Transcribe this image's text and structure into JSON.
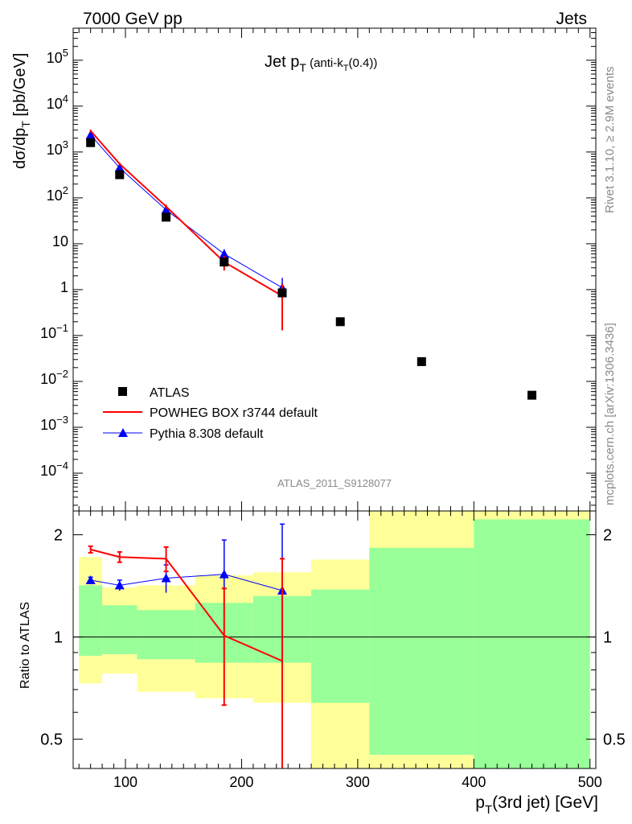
{
  "header": {
    "left": "7000 GeV pp",
    "right": "Jets",
    "side_top": "Rivet 3.1.10, ≥ 2.9M events",
    "side_bottom": "mcplots.cern.ch [arXiv:1306.3436]",
    "analysis_id": "ATLAS_2011_S9128077"
  },
  "chart_data": [
    {
      "type": "scatter",
      "title": "Jet p_T (anti-k_T(0.4))",
      "ylabel": "dσ/dp_T [pb/GeV]",
      "xlabel": "p_T(3rd jet) [GeV]",
      "yscale": "log",
      "ylim": [
        1.5e-05,
        500000
      ],
      "xlim": [
        55,
        505
      ],
      "x_ticks": [
        "100",
        "200",
        "300",
        "400",
        "500"
      ],
      "y_ticks": [
        "10^-4",
        "10^-3",
        "10^-2",
        "10^-1",
        "1",
        "10",
        "10^2",
        "10^3",
        "10^4",
        "10^5"
      ],
      "legend_position": "bottom-left",
      "series": [
        {
          "name": "ATLAS",
          "marker": "square",
          "color": "#000000",
          "x": [
            70,
            95,
            135,
            185,
            235,
            285,
            355,
            450
          ],
          "y": [
            1600,
            320,
            38,
            4.0,
            0.85,
            0.2,
            0.027,
            0.005
          ]
        },
        {
          "name": "POWHEG BOX r3744 default",
          "marker": "line",
          "color": "#ff0000",
          "x": [
            70,
            95,
            135,
            185,
            235
          ],
          "y": [
            2900,
            550,
            65,
            4.0,
            0.73
          ],
          "err": [
            180,
            30,
            6,
            1.4,
            0.6
          ]
        },
        {
          "name": "Pythia 8.308 default",
          "marker": "triangle",
          "color": "#0000ff",
          "x": [
            70,
            95,
            135,
            185,
            235
          ],
          "y": [
            2350,
            450,
            55,
            6.0,
            1.1
          ],
          "err": [
            120,
            20,
            6,
            1.6,
            0.7
          ]
        }
      ]
    },
    {
      "type": "line",
      "ylabel": "Ratio to ATLAS",
      "xlabel": "p_T(3rd jet) [GeV]",
      "yscale": "log",
      "ylim": [
        0.41,
        2.35
      ],
      "xlim": [
        55,
        505
      ],
      "y_ticks": [
        "0.5",
        "1",
        "2"
      ],
      "reference_line": 1,
      "uncertainty_bins": [
        {
          "lo": 60,
          "hi": 80,
          "stat_lo": 0.88,
          "stat_hi": 1.42,
          "tot_lo": 0.73,
          "tot_hi": 1.72
        },
        {
          "lo": 80,
          "hi": 110,
          "stat_lo": 0.89,
          "stat_hi": 1.24,
          "tot_lo": 0.78,
          "tot_hi": 1.4
        },
        {
          "lo": 110,
          "hi": 160,
          "stat_lo": 0.86,
          "stat_hi": 1.2,
          "tot_lo": 0.69,
          "tot_hi": 1.42
        },
        {
          "lo": 160,
          "hi": 210,
          "stat_lo": 0.84,
          "stat_hi": 1.26,
          "tot_lo": 0.66,
          "tot_hi": 1.52
        },
        {
          "lo": 210,
          "hi": 260,
          "stat_lo": 0.84,
          "stat_hi": 1.32,
          "tot_lo": 0.64,
          "tot_hi": 1.55
        },
        {
          "lo": 260,
          "hi": 310,
          "stat_lo": 0.64,
          "stat_hi": 1.38,
          "tot_lo": 0.4,
          "tot_hi": 1.69
        },
        {
          "lo": 310,
          "hi": 400,
          "stat_lo": 0.45,
          "stat_hi": 1.83,
          "tot_lo": 0.4,
          "tot_hi": 2.4
        },
        {
          "lo": 400,
          "hi": 500,
          "stat_lo": 0.4,
          "stat_hi": 2.22,
          "tot_lo": 0.4,
          "tot_hi": 2.4
        }
      ],
      "series": [
        {
          "name": "POWHEG BOX r3744 default",
          "color": "#ff0000",
          "x": [
            70,
            95,
            135,
            185,
            235
          ],
          "y": [
            1.81,
            1.72,
            1.7,
            1.01,
            0.85
          ],
          "err": [
            0.04,
            0.06,
            0.14,
            0.38,
            0.85
          ]
        },
        {
          "name": "Pythia 8.308 default",
          "color": "#0000ff",
          "x": [
            70,
            95,
            135,
            185,
            235
          ],
          "y": [
            1.47,
            1.42,
            1.49,
            1.53,
            1.37
          ],
          "err": [
            0.03,
            0.05,
            0.14,
            0.4,
            0.78
          ]
        }
      ]
    }
  ]
}
